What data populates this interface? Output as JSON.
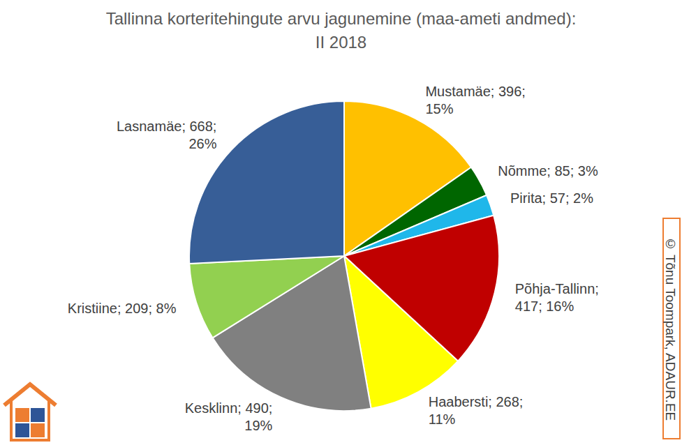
{
  "chart_data": {
    "type": "pie",
    "title": "Tallinna korteritehingute arvu jagunemine (maa-ameti andmed): II 2018",
    "categories": [
      "Mustamäe",
      "Nõmme",
      "Pirita",
      "Põhja-Tallinn",
      "Haabersti",
      "Kesklinn",
      "Kristiine",
      "Lasnamäe"
    ],
    "values": [
      396,
      85,
      57,
      417,
      268,
      490,
      209,
      668
    ],
    "value_labels": [
      "Mustamäe; 396; 15%",
      "Nõmme; 85; 3%",
      "Pirita; 57; 2%",
      "Põhja-Tallinn; 417; 16%",
      "Haabersti; 268; 11%",
      "Kesklinn; 490; 19%",
      "Kristiine; 209; 8%",
      "Lasnamäe; 668; 26%"
    ],
    "colors": [
      "#FFC000",
      "#006600",
      "#1FB7EA",
      "#C00000",
      "#FFFF00",
      "#808080",
      "#92D050",
      "#375E97"
    ],
    "data_labels": true,
    "annotations": [
      "© Tõnu Toompark, ADAUR.EE"
    ]
  }
}
